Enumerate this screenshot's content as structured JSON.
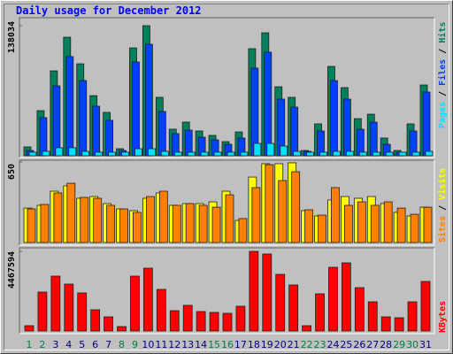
{
  "title": "Daily usage for December 2012",
  "legend_separator": " / ",
  "chart_data": [
    {
      "type": "bar",
      "series": [
        {
          "name": "Hits",
          "color": "#00805c",
          "values": [
            9400,
            47900,
            90100,
            125800,
            97600,
            63800,
            46000,
            7500,
            114500,
            138034,
            62000,
            28200,
            35700,
            26300,
            21600,
            15000,
            25300,
            113600,
            130500,
            73200,
            62000,
            5600,
            33800,
            94800,
            72300,
            39400,
            44100,
            18800,
            5600,
            33800,
            75100
          ]
        },
        {
          "name": "Files",
          "color": "#0040ff",
          "values": [
            5600,
            40400,
            74200,
            105200,
            79800,
            52600,
            37600,
            5600,
            99500,
            118300,
            47000,
            23500,
            27200,
            19700,
            16900,
            12200,
            18800,
            93000,
            109900,
            60100,
            51600,
            4700,
            26300,
            79800,
            60100,
            28200,
            35700,
            12200,
            3800,
            26300,
            67600
          ]
        },
        {
          "name": "Pages",
          "color": "#00e0ff",
          "values": [
            3800,
            4700,
            8500,
            8500,
            4700,
            3800,
            3800,
            3800,
            7500,
            7500,
            4700,
            3800,
            3800,
            3800,
            3800,
            3800,
            3800,
            13100,
            13100,
            10300,
            4700,
            3800,
            3800,
            4700,
            4700,
            3800,
            3800,
            3800,
            3800,
            3800,
            4700
          ]
        }
      ],
      "ylim": [
        0,
        138034
      ],
      "yticks": [
        138034
      ]
    },
    {
      "type": "bar",
      "series": [
        {
          "name": "Visits",
          "color": "#ffff00",
          "values": [
            278,
            300,
            414,
            457,
            357,
            371,
            314,
            271,
            257,
            357,
            400,
            300,
            314,
            314,
            328,
            414,
            178,
            528,
            636,
            636,
            643,
            257,
            214,
            343,
            371,
            357,
            371,
            314,
            243,
            214,
            285
          ]
        },
        {
          "name": "Sites",
          "color": "#ff8000",
          "values": [
            271,
            307,
            400,
            478,
            364,
            357,
            300,
            271,
            243,
            371,
            414,
            300,
            314,
            300,
            285,
            385,
            193,
            443,
            628,
            500,
            571,
            264,
            221,
            443,
            300,
            328,
            300,
            328,
            278,
            228,
            285
          ]
        }
      ],
      "ylim": [
        0,
        650
      ],
      "yticks": [
        650
      ]
    },
    {
      "type": "bar",
      "series": [
        {
          "name": "KBytes",
          "color": "#ff0000",
          "values": [
            297900,
            2184000,
            3077700,
            2630900,
            2134500,
            1191400,
            794200,
            248200,
            3077700,
            3524400,
            2333100,
            1141700,
            1439600,
            1092100,
            1042400,
            992800,
            1389900,
            4467594,
            4318700,
            3177000,
            2581300,
            297900,
            2084900,
            3574100,
            3822300,
            2432400,
            1638100,
            794200,
            744600,
            1638100,
            2779800
          ]
        }
      ],
      "ylim": [
        0,
        4467594
      ],
      "yticks": [
        4467594
      ],
      "categories": [
        "1",
        "2",
        "3",
        "4",
        "5",
        "6",
        "7",
        "8",
        "9",
        "10",
        "11",
        "12",
        "13",
        "14",
        "15",
        "16",
        "17",
        "18",
        "19",
        "20",
        "21",
        "22",
        "23",
        "24",
        "25",
        "26",
        "27",
        "28",
        "29",
        "30",
        "31"
      ],
      "category_colors": [
        "#008040",
        "#008040",
        "#000080",
        "#000080",
        "#000080",
        "#000080",
        "#000080",
        "#008040",
        "#008040",
        "#000080",
        "#000080",
        "#000080",
        "#000080",
        "#000080",
        "#008040",
        "#008040",
        "#000080",
        "#000080",
        "#000080",
        "#000080",
        "#000080",
        "#008040",
        "#008040",
        "#000080",
        "#000080",
        "#000080",
        "#000080",
        "#000080",
        "#008040",
        "#008040",
        "#000080"
      ]
    }
  ]
}
